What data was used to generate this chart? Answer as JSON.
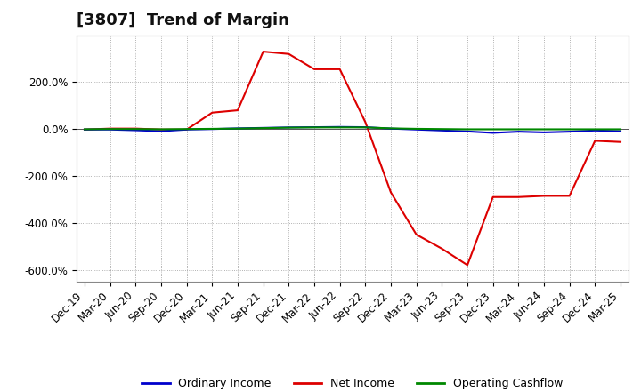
{
  "title": "[3807]  Trend of Margin",
  "x_labels": [
    "Dec-19",
    "Mar-20",
    "Jun-20",
    "Sep-20",
    "Dec-20",
    "Mar-21",
    "Jun-21",
    "Sep-21",
    "Dec-21",
    "Mar-22",
    "Jun-22",
    "Sep-22",
    "Dec-22",
    "Mar-23",
    "Jun-23",
    "Sep-23",
    "Dec-23",
    "Mar-24",
    "Jun-24",
    "Sep-24",
    "Dec-24",
    "Mar-25"
  ],
  "ordinary_income": [
    -2,
    -2,
    -5,
    -9,
    -2,
    0,
    3,
    5,
    7,
    8,
    9,
    8,
    2,
    -2,
    -6,
    -10,
    -16,
    -11,
    -14,
    -11,
    -6,
    -9
  ],
  "net_income": [
    -2,
    2,
    2,
    -2,
    -2,
    70,
    80,
    330,
    320,
    255,
    255,
    30,
    -270,
    -450,
    -510,
    -580,
    -290,
    -290,
    -285,
    -285,
    -50,
    -55
  ],
  "operating_cashflow": [
    -1,
    0,
    0,
    -1,
    0,
    1,
    2,
    4,
    6,
    7,
    7,
    7,
    3,
    1,
    0,
    -1,
    -1,
    -1,
    -1,
    -1,
    -1,
    -1
  ],
  "ylim": [
    -650,
    400
  ],
  "yticks": [
    -600,
    -400,
    -200,
    0,
    200
  ],
  "ytick_labels": [
    "-600.0%",
    "-400.0%",
    "-200.0%",
    "0.0%",
    "200.0%"
  ],
  "line_colors": {
    "ordinary_income": "#0000cc",
    "net_income": "#dd0000",
    "operating_cashflow": "#008800"
  },
  "legend_labels": [
    "Ordinary Income",
    "Net Income",
    "Operating Cashflow"
  ],
  "bg_color": "#ffffff",
  "plot_bg_color": "#ffffff",
  "grid_color": "#999999",
  "title_fontsize": 13,
  "axis_fontsize": 8.5,
  "legend_fontsize": 9
}
